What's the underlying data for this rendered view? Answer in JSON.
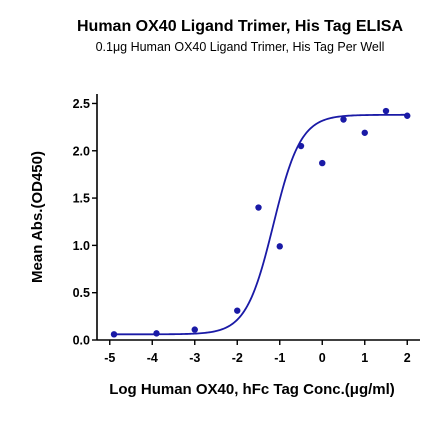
{
  "chart_data": {
    "type": "line",
    "title": "Human OX40 Ligand Trimer, His Tag ELISA",
    "subtitle": "0.1μg Human OX40 Ligand Trimer, His Tag Per Well",
    "xlabel": "Log Human OX40, hFc Tag Conc.(μg/ml)",
    "ylabel": "Mean Abs.(OD450)",
    "xlim": [
      -5.3,
      2.3
    ],
    "ylim": [
      0.0,
      2.6
    ],
    "xticks": [
      -5,
      -4,
      -3,
      -2,
      -1,
      0,
      1,
      2
    ],
    "xtick_labels": [
      "-5",
      "-4",
      "-3",
      "-2",
      "-1",
      "0",
      "1",
      "2"
    ],
    "yticks": [
      0.0,
      0.5,
      1.0,
      1.5,
      2.0,
      2.5
    ],
    "ytick_labels": [
      "0.0",
      "0.5",
      "1.0",
      "1.5",
      "2.0",
      "2.5"
    ],
    "grid": false,
    "color": "#1a1aa6",
    "series": [
      {
        "x": [
          -4.9,
          -3.9,
          -3.0,
          -2.0,
          -1.0,
          0.0,
          1.0,
          2.0
        ],
        "y": [
          0.06,
          0.07,
          0.11,
          0.31,
          0.99,
          1.87,
          2.19,
          2.37
        ]
      }
    ],
    "extra_points": {
      "x": [
        -1.5,
        -0.5,
        0.5,
        1.5
      ],
      "y": [
        1.4,
        2.05,
        2.33,
        2.42
      ]
    }
  }
}
